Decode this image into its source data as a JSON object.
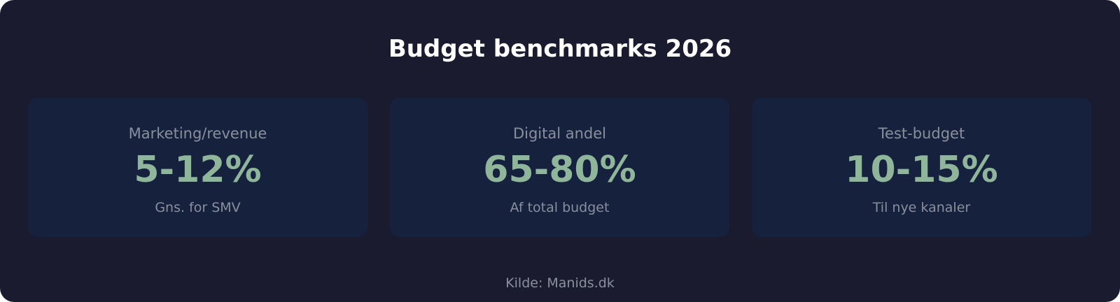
{
  "title": "Budget benchmarks 2026",
  "cards": [
    {
      "label": "Marketing/revenue",
      "value": "5-12%",
      "note": "Gns. for SMV"
    },
    {
      "label": "Digital andel",
      "value": "65-80%",
      "note": "Af total budget"
    },
    {
      "label": "Test-budget",
      "value": "10-15%",
      "note": "Til nye kanaler"
    }
  ],
  "source": "Kilde: Manids.dk",
  "colors": {
    "background": "#1b1b2f",
    "card": "#16213e",
    "value": "#8fb59a",
    "muted": "#8a8f9c",
    "title": "#ffffff"
  }
}
